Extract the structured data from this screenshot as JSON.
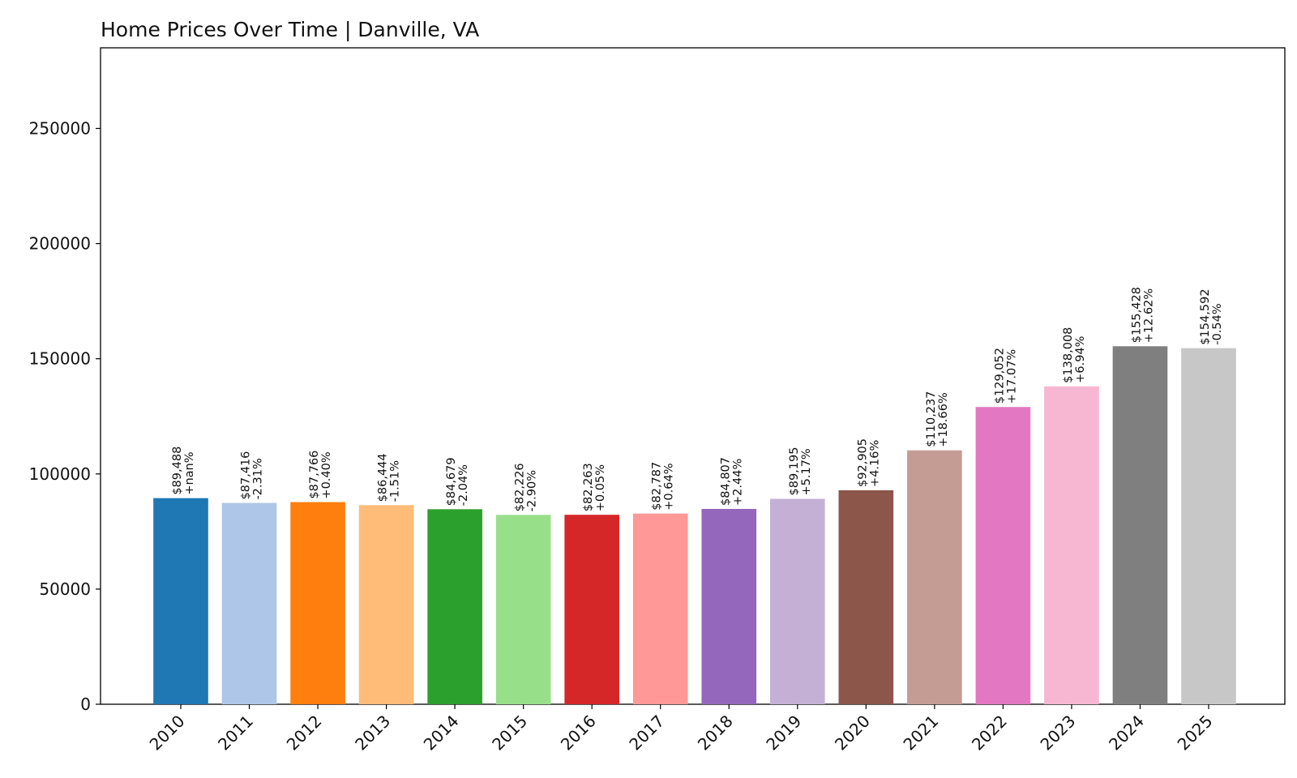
{
  "chart_data": {
    "type": "bar",
    "title": "Home Prices Over Time | Danville, VA",
    "xlabel": "",
    "ylabel": "",
    "ylim": [
      0,
      285000
    ],
    "yticks": [
      0,
      50000,
      100000,
      150000,
      200000,
      250000
    ],
    "grid": false,
    "categories": [
      "2010",
      "2011",
      "2012",
      "2013",
      "2014",
      "2015",
      "2016",
      "2017",
      "2018",
      "2019",
      "2020",
      "2021",
      "2022",
      "2023",
      "2024",
      "2025"
    ],
    "values": [
      89488,
      87416,
      87766,
      86444,
      84679,
      82226,
      82263,
      82787,
      84807,
      89195,
      92905,
      110237,
      129052,
      138008,
      155428,
      154592
    ],
    "value_labels": [
      "$89,488",
      "$87,416",
      "$87,766",
      "$86,444",
      "$84,679",
      "$82,226",
      "$82,263",
      "$82,787",
      "$84,807",
      "$89,195",
      "$92,905",
      "$110,237",
      "$129,052",
      "$138,008",
      "$155,428",
      "$154,592"
    ],
    "change_labels": [
      "+nan%",
      "-2.31%",
      "+0.40%",
      "-1.51%",
      "-2.04%",
      "-2.90%",
      "+0.05%",
      "+0.64%",
      "+2.44%",
      "+5.17%",
      "+4.16%",
      "+18.66%",
      "+17.07%",
      "+6.94%",
      "+12.62%",
      "-0.54%"
    ],
    "colors": [
      "#1f77b4",
      "#aec7e8",
      "#ff7f0e",
      "#ffbb78",
      "#2ca02c",
      "#98df8a",
      "#d62728",
      "#ff9896",
      "#9467bd",
      "#c5b0d5",
      "#8c564b",
      "#c49c94",
      "#e377c2",
      "#f7b6d2",
      "#7f7f7f",
      "#c7c7c7"
    ]
  }
}
